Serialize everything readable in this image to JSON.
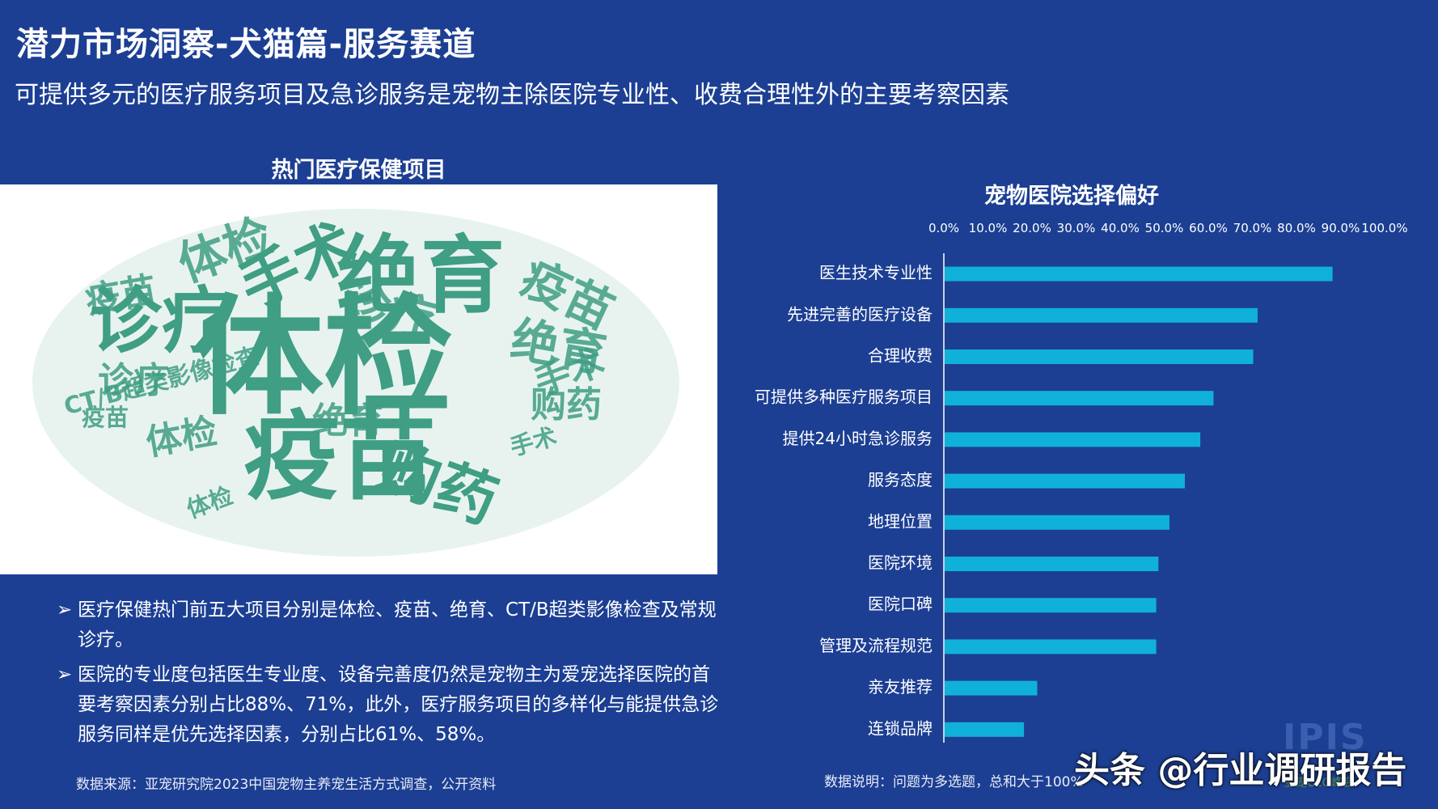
{
  "header": {
    "title": "潜力市场洞察-犬猫篇-服务赛道",
    "subtitle": "可提供多元的医疗服务项目及急诊服务是宠物主除医院专业性、收费合理性外的主要考察因素"
  },
  "wordcloud": {
    "title": "热门医疗保健项目",
    "color": "#3f9e83",
    "words": [
      {
        "text": "体检",
        "weight": 10
      },
      {
        "text": "疫苗",
        "weight": 7
      },
      {
        "text": "绝育",
        "weight": 6
      },
      {
        "text": "诊疗",
        "weight": 5
      },
      {
        "text": "手术",
        "weight": 4
      },
      {
        "text": "购药",
        "weight": 4
      },
      {
        "text": "体检",
        "weight": 3
      },
      {
        "text": "疫苗",
        "weight": 3
      },
      {
        "text": "绝育",
        "weight": 3
      },
      {
        "text": "诊疗",
        "weight": 3
      },
      {
        "text": "手术",
        "weight": 2
      },
      {
        "text": "疫苗",
        "weight": 2
      },
      {
        "text": "购药",
        "weight": 2
      },
      {
        "text": "体检",
        "weight": 2
      },
      {
        "text": "CT/B超类影像检查",
        "weight": 1
      },
      {
        "text": "绝育",
        "weight": 2
      },
      {
        "text": "诊疗",
        "weight": 2
      },
      {
        "text": "手术",
        "weight": 1
      },
      {
        "text": "疫苗",
        "weight": 1
      },
      {
        "text": "体检",
        "weight": 1
      }
    ]
  },
  "bullets": [
    "医疗保健热门前五大项目分别是体检、疫苗、绝育、CT/B超类影像检查及常规诊疗。",
    "医院的专业度包括医生专业度、设备完善度仍然是宠物主为爱宠选择医院的首要考察因素分别占比88%、71%，此外，医疗服务项目的多样化与能提供急诊服务同样是优先选择因素，分别占比61%、58%。"
  ],
  "bullet_marker": "➢",
  "source": "数据来源：亚宠研究院2023中国宠物主养宠生活方式调查，公开资料",
  "note": "数据说明：问题为多选题，总和大于100%",
  "logo": {
    "text": "IPIS",
    "sub": "亚宠CEO峰会"
  },
  "watermark": "头条 @行业调研报告",
  "chart_data": {
    "type": "bar",
    "orientation": "horizontal",
    "title": "宠物医院选择偏好",
    "categories": [
      "医生技术专业性",
      "先进完善的医疗设备",
      "合理收费",
      "可提供多种医疗服务项目",
      "提供24小时急诊服务",
      "服务态度",
      "地理位置",
      "医院环境",
      "医院口碑",
      "管理及流程规范",
      "亲友推荐",
      "连锁品牌"
    ],
    "values": [
      88,
      71,
      70,
      61,
      58,
      54.5,
      51,
      48.5,
      48,
      48,
      21,
      18
    ],
    "xlim": [
      0,
      100
    ],
    "ticks": [
      "0.0%",
      "10.0%",
      "20.0%",
      "30.0%",
      "40.0%",
      "50.0%",
      "60.0%",
      "70.0%",
      "80.0%",
      "90.0%",
      "100.0%"
    ],
    "tick_position": "top",
    "bar_color": "#10b1d8",
    "grid": false
  }
}
